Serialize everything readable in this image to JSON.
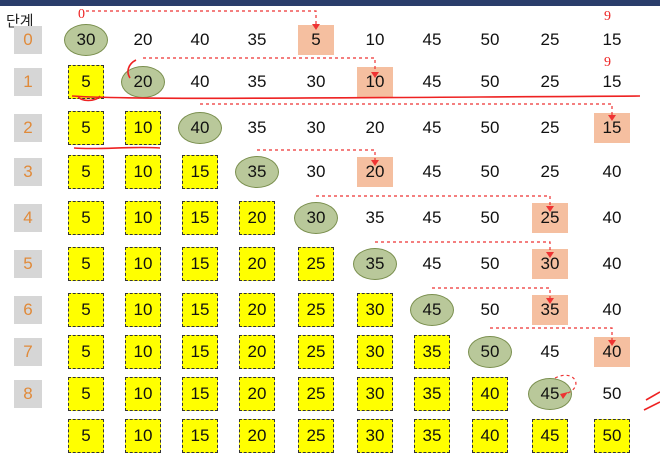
{
  "header": "단계",
  "steps": [
    "0",
    "1",
    "2",
    "3",
    "4",
    "5",
    "6",
    "7",
    "8"
  ],
  "rows": [
    {
      "values": [
        "30",
        "20",
        "40",
        "35",
        "5",
        "10",
        "45",
        "50",
        "25",
        "15"
      ],
      "sorted": 0,
      "pivot": 0,
      "min": 4
    },
    {
      "values": [
        "5",
        "20",
        "40",
        "35",
        "30",
        "10",
        "45",
        "50",
        "25",
        "15"
      ],
      "sorted": 1,
      "pivot": 1,
      "min": 5
    },
    {
      "values": [
        "5",
        "10",
        "40",
        "35",
        "30",
        "20",
        "45",
        "50",
        "25",
        "15"
      ],
      "sorted": 2,
      "pivot": 2,
      "min": 9
    },
    {
      "values": [
        "5",
        "10",
        "15",
        "35",
        "30",
        "20",
        "45",
        "50",
        "25",
        "40"
      ],
      "sorted": 3,
      "pivot": 3,
      "min": 5
    },
    {
      "values": [
        "5",
        "10",
        "15",
        "20",
        "30",
        "35",
        "45",
        "50",
        "25",
        "40"
      ],
      "sorted": 4,
      "pivot": 4,
      "min": 8
    },
    {
      "values": [
        "5",
        "10",
        "15",
        "20",
        "25",
        "35",
        "45",
        "50",
        "30",
        "40"
      ],
      "sorted": 5,
      "pivot": 5,
      "min": 8
    },
    {
      "values": [
        "5",
        "10",
        "15",
        "20",
        "25",
        "30",
        "45",
        "50",
        "35",
        "40"
      ],
      "sorted": 6,
      "pivot": 6,
      "min": 8
    },
    {
      "values": [
        "5",
        "10",
        "15",
        "20",
        "25",
        "30",
        "35",
        "50",
        "45",
        "40"
      ],
      "sorted": 7,
      "pivot": 7,
      "min": 9
    },
    {
      "values": [
        "5",
        "10",
        "15",
        "20",
        "25",
        "30",
        "35",
        "40",
        "45",
        "50"
      ],
      "sorted": 8,
      "pivot": 8,
      "min": 8
    },
    {
      "values": [
        "5",
        "10",
        "15",
        "20",
        "25",
        "30",
        "35",
        "40",
        "45",
        "50"
      ],
      "sorted": 10,
      "pivot": -1,
      "min": -1
    }
  ],
  "annotations": {
    "row0_start": "0",
    "row0_end": "9",
    "row1_end": "9"
  }
}
